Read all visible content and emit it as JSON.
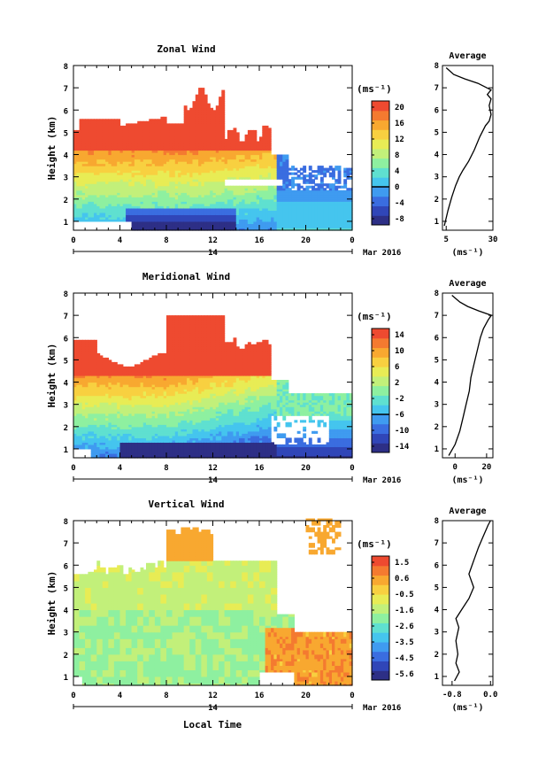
{
  "colors": {
    "scale": [
      "#2d2f86",
      "#3046b8",
      "#3a6de0",
      "#3f9bf0",
      "#45c5ee",
      "#5fe0d0",
      "#8ef0a0",
      "#c2f07a",
      "#e8ec55",
      "#f8d040",
      "#f8a830",
      "#f47a30",
      "#ee4a30"
    ]
  },
  "panels": [
    {
      "id": "zonal",
      "title": "Zonal Wind",
      "ylabel": "Height (km)",
      "unit_label": "(ms⁻¹)",
      "colorbar_ticks": [
        "20",
        "16",
        "12",
        "8",
        "4",
        "0",
        "-4",
        "-8"
      ],
      "date_label": "14",
      "month_label": "Mar 2016",
      "x_ticks": [
        "0",
        "4",
        "8",
        "12",
        "16",
        "20",
        "0"
      ],
      "y_ticks": [
        "1",
        "2",
        "3",
        "4",
        "5",
        "6",
        "7",
        "8"
      ],
      "avg_title": "Average",
      "avg_unit": "(ms⁻¹)",
      "avg_x_ticks": [
        "5",
        "30"
      ]
    },
    {
      "id": "meridional",
      "title": "Meridional Wind",
      "ylabel": "Height (km)",
      "unit_label": "(ms⁻¹)",
      "colorbar_ticks": [
        "14",
        "10",
        "6",
        "2",
        "-2",
        "-6",
        "-10",
        "-14"
      ],
      "date_label": "14",
      "month_label": "Mar 2016",
      "x_ticks": [
        "0",
        "4",
        "8",
        "12",
        "16",
        "20",
        "0"
      ],
      "y_ticks": [
        "1",
        "2",
        "3",
        "4",
        "5",
        "6",
        "7",
        "8"
      ],
      "avg_title": "Average",
      "avg_unit": "(ms⁻¹)",
      "avg_x_ticks": [
        "0",
        "20"
      ]
    },
    {
      "id": "vertical",
      "title": "Vertical Wind",
      "ylabel": "Height (km)",
      "unit_label": "(ms⁻¹)",
      "colorbar_ticks": [
        "1.5",
        "0.6",
        "-0.5",
        "-1.6",
        "-2.6",
        "-3.5",
        "-4.5",
        "-5.6"
      ],
      "date_label": "14",
      "month_label": "Mar 2016",
      "x_ticks": [
        "0",
        "4",
        "8",
        "12",
        "16",
        "20",
        "0"
      ],
      "y_ticks": [
        "1",
        "2",
        "3",
        "4",
        "5",
        "6",
        "7",
        "8"
      ],
      "avg_title": "Average",
      "avg_unit": "(ms⁻¹)",
      "avg_x_ticks": [
        "-0.8",
        "0.0"
      ]
    }
  ],
  "xlabel": "Local Time",
  "chart_data": [
    {
      "type": "heatmap",
      "title": "Zonal Wind",
      "xlabel": "",
      "ylabel": "Height (km)",
      "xlim": [
        0,
        24
      ],
      "ylim": [
        0.6,
        8
      ],
      "x_tick_labels": [
        "0",
        "4",
        "8",
        "12",
        "16",
        "20",
        "0"
      ],
      "colorbar_label": "(ms⁻¹)",
      "colorbar_range": [
        -8,
        22
      ],
      "average_profile": {
        "title": "Average",
        "xlim": [
          3,
          30
        ],
        "points": [
          [
            4,
            0.8
          ],
          [
            6,
            1.5
          ],
          [
            8,
            2.1
          ],
          [
            10,
            2.6
          ],
          [
            12,
            3.0
          ],
          [
            14,
            3.3
          ],
          [
            17,
            3.7
          ],
          [
            20,
            4.2
          ],
          [
            23,
            4.8
          ],
          [
            26,
            5.3
          ],
          [
            28,
            5.5
          ],
          [
            29,
            5.8
          ],
          [
            28,
            6.2
          ],
          [
            29,
            6.5
          ],
          [
            27,
            6.7
          ],
          [
            29,
            6.9
          ],
          [
            22,
            7.2
          ],
          [
            15,
            7.4
          ],
          [
            9,
            7.6
          ],
          [
            5,
            7.9
          ]
        ]
      }
    },
    {
      "type": "heatmap",
      "title": "Meridional Wind",
      "xlabel": "",
      "ylabel": "Height (km)",
      "xlim": [
        0,
        24
      ],
      "ylim": [
        0.6,
        8
      ],
      "x_tick_labels": [
        "0",
        "4",
        "8",
        "12",
        "16",
        "20",
        "0"
      ],
      "colorbar_label": "(ms⁻¹)",
      "colorbar_range": [
        -14,
        16
      ],
      "average_profile": {
        "title": "Average",
        "xlim": [
          -8,
          24
        ],
        "points": [
          [
            -4,
            0.7
          ],
          [
            0,
            1.2
          ],
          [
            3,
            1.8
          ],
          [
            5,
            2.4
          ],
          [
            7,
            3.0
          ],
          [
            9,
            3.6
          ],
          [
            10,
            4.2
          ],
          [
            12,
            4.8
          ],
          [
            14,
            5.4
          ],
          [
            16,
            6.0
          ],
          [
            18,
            6.4
          ],
          [
            21,
            6.8
          ],
          [
            23,
            7.0
          ],
          [
            15,
            7.2
          ],
          [
            8,
            7.4
          ],
          [
            3,
            7.6
          ],
          [
            -2,
            7.9
          ]
        ]
      }
    },
    {
      "type": "heatmap",
      "title": "Vertical Wind",
      "xlabel": "Local Time",
      "ylabel": "Height (km)",
      "xlim": [
        0,
        24
      ],
      "ylim": [
        0.6,
        8
      ],
      "x_tick_labels": [
        "0",
        "4",
        "8",
        "12",
        "16",
        "20",
        "0"
      ],
      "colorbar_label": "(ms⁻¹)",
      "colorbar_range": [
        -6,
        2
      ],
      "average_profile": {
        "title": "Average",
        "xlim": [
          -1.0,
          0.05
        ],
        "points": [
          [
            -0.75,
            0.8
          ],
          [
            -0.65,
            1.2
          ],
          [
            -0.72,
            1.6
          ],
          [
            -0.68,
            2.0
          ],
          [
            -0.72,
            2.6
          ],
          [
            -0.66,
            3.2
          ],
          [
            -0.72,
            3.6
          ],
          [
            -0.6,
            4.0
          ],
          [
            -0.45,
            4.5
          ],
          [
            -0.35,
            5.0
          ],
          [
            -0.45,
            5.6
          ],
          [
            -0.35,
            6.2
          ],
          [
            -0.25,
            6.8
          ],
          [
            -0.15,
            7.3
          ],
          [
            -0.05,
            7.8
          ],
          [
            0.0,
            8.0
          ]
        ]
      }
    }
  ]
}
